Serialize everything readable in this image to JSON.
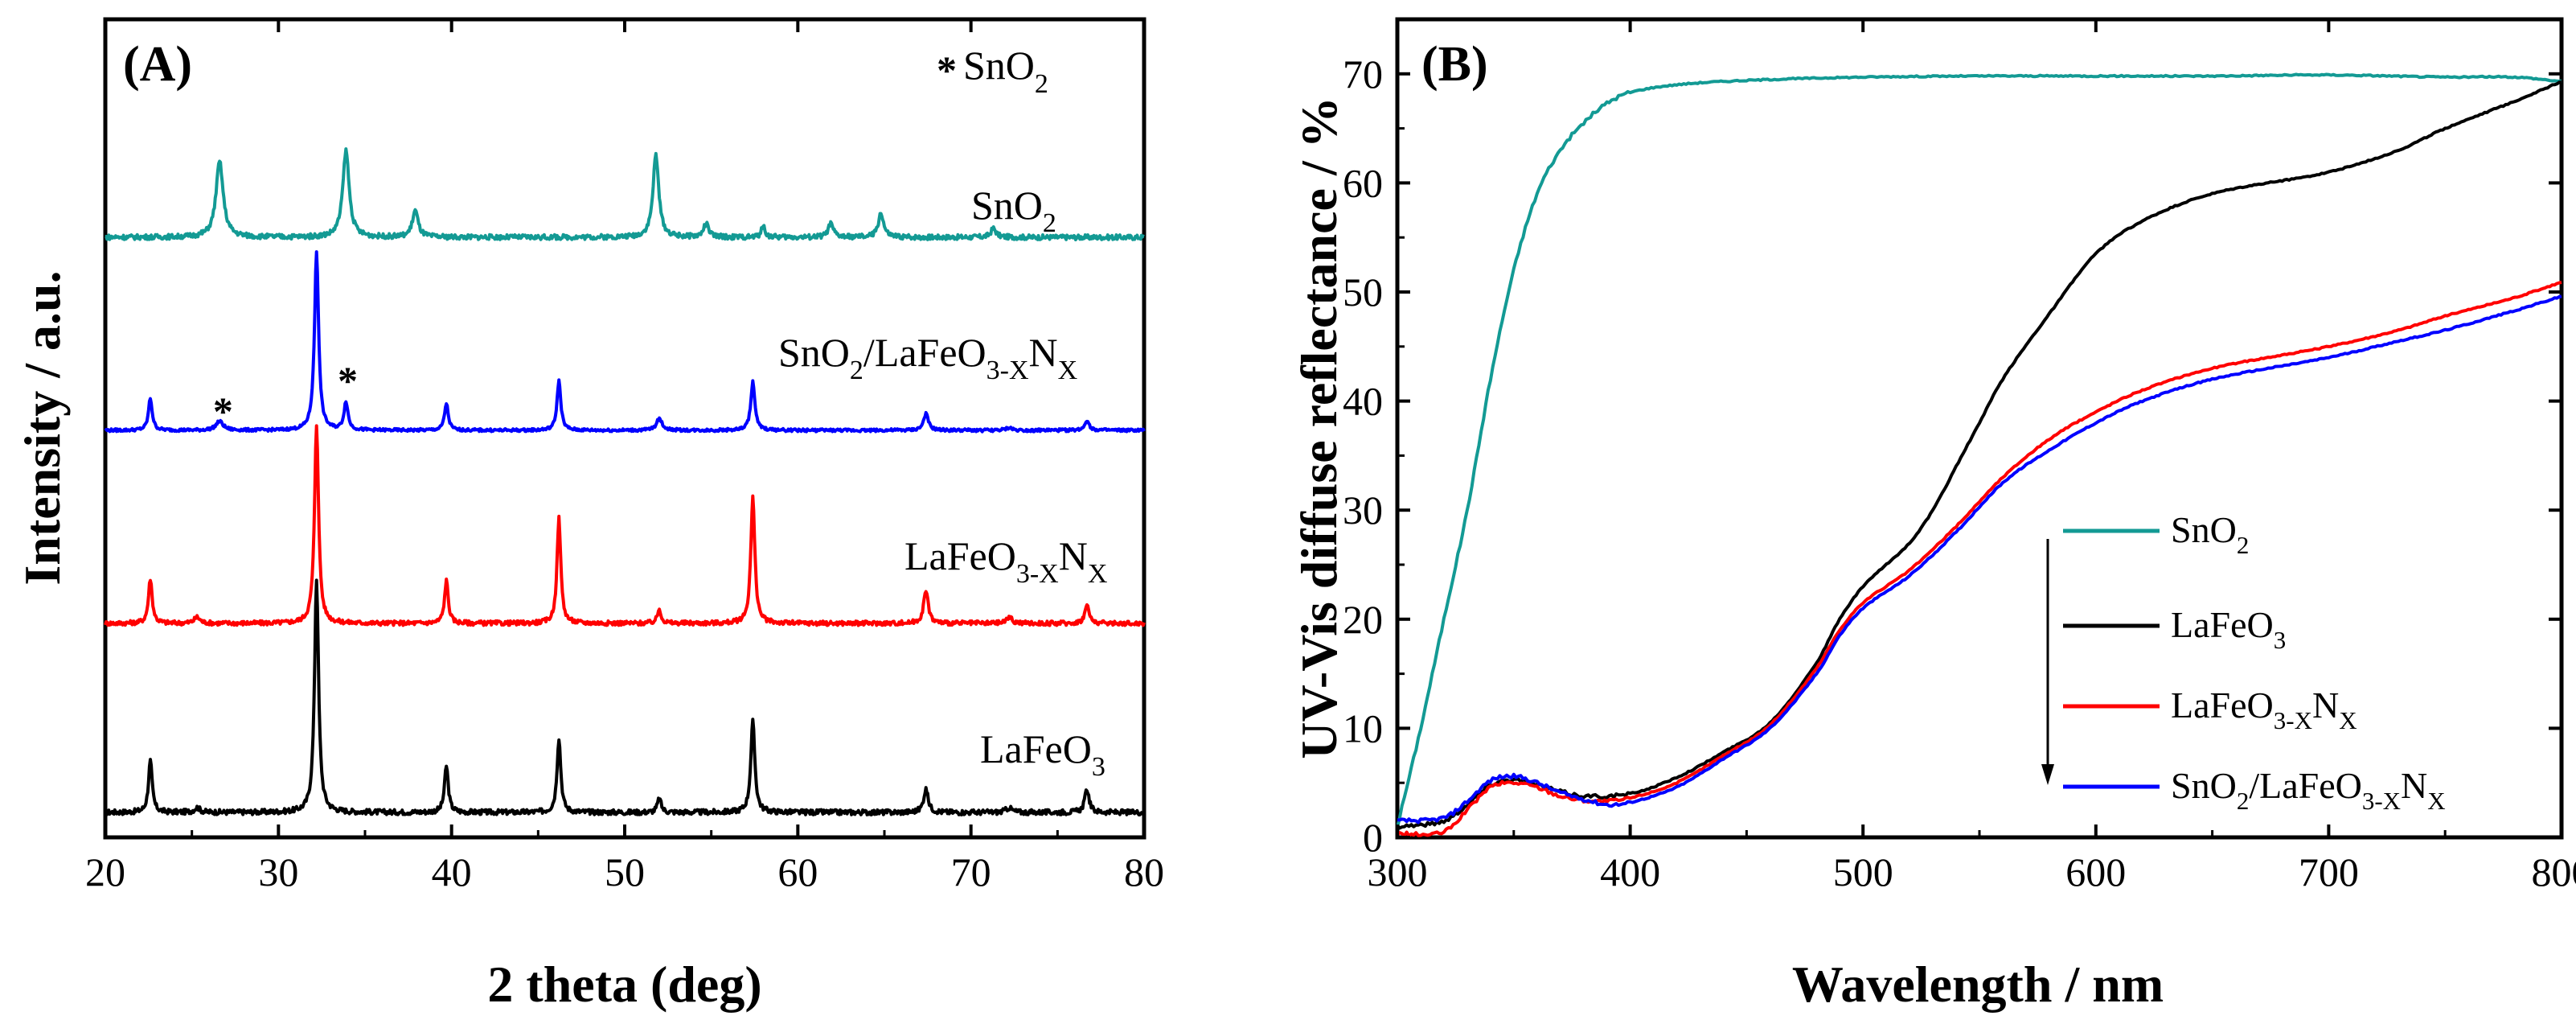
{
  "chart_data": [
    {
      "panel": "(A)",
      "type": "line",
      "xlabel": "2 theta (deg)",
      "ylabel": "Intensity / a.u.",
      "xlim": [
        20,
        80
      ],
      "xticks": [
        "20",
        "30",
        "40",
        "50",
        "60",
        "70",
        "80"
      ],
      "y_tick_labels": "none",
      "legend_note": {
        "symbol": "*",
        "base": "SnO",
        "sub": "2"
      },
      "series": [
        {
          "name": "LaFeO3",
          "label_base": "LaFeO",
          "label_sub": "3",
          "color": "#000000",
          "offset": 0,
          "peaks": [
            {
              "x": 22.6,
              "h": 0.22,
              "w": 0.13
            },
            {
              "x": 25.3,
              "h": 0.02,
              "w": 0.2
            },
            {
              "x": 32.2,
              "h": 1.0,
              "w": 0.14
            },
            {
              "x": 39.7,
              "h": 0.2,
              "w": 0.13
            },
            {
              "x": 46.2,
              "h": 0.32,
              "w": 0.13
            },
            {
              "x": 52.0,
              "h": 0.06,
              "w": 0.13
            },
            {
              "x": 57.4,
              "h": 0.39,
              "w": 0.14
            },
            {
              "x": 67.4,
              "h": 0.1,
              "w": 0.16
            },
            {
              "x": 72.2,
              "h": 0.02,
              "w": 0.2
            },
            {
              "x": 76.7,
              "h": 0.1,
              "w": 0.15
            }
          ]
        },
        {
          "name": "LaFeO3-XNX",
          "label_base": "LaFeO",
          "label_sub": "3-X",
          "label_base2": "N",
          "label_sub2": "X",
          "color": "#ff0000",
          "offset": 1,
          "peaks": [
            {
              "x": 22.6,
              "h": 0.22,
              "w": 0.13
            },
            {
              "x": 25.3,
              "h": 0.03,
              "w": 0.2
            },
            {
              "x": 32.2,
              "h": 0.98,
              "w": 0.14
            },
            {
              "x": 39.7,
              "h": 0.21,
              "w": 0.13
            },
            {
              "x": 46.2,
              "h": 0.52,
              "w": 0.13
            },
            {
              "x": 52.0,
              "h": 0.07,
              "w": 0.13
            },
            {
              "x": 57.4,
              "h": 0.62,
              "w": 0.14
            },
            {
              "x": 67.4,
              "h": 0.16,
              "w": 0.16
            },
            {
              "x": 72.2,
              "h": 0.03,
              "w": 0.2
            },
            {
              "x": 76.7,
              "h": 0.09,
              "w": 0.15
            }
          ]
        },
        {
          "name": "SnO2/LaFeO3-XNX",
          "label_base": "SnO",
          "label_sub": "2",
          "label_base2": "/LaFeO",
          "label_sub2": "3-X",
          "label_base3": "N",
          "label_sub3": "X",
          "color": "#0000ff",
          "offset": 2,
          "peaks": [
            {
              "x": 22.6,
              "h": 0.25,
              "w": 0.13
            },
            {
              "x": 26.6,
              "h": 0.07,
              "w": 0.25
            },
            {
              "x": 32.2,
              "h": 1.4,
              "w": 0.14
            },
            {
              "x": 33.9,
              "h": 0.22,
              "w": 0.14
            },
            {
              "x": 39.7,
              "h": 0.21,
              "w": 0.13
            },
            {
              "x": 46.2,
              "h": 0.39,
              "w": 0.13
            },
            {
              "x": 52.0,
              "h": 0.09,
              "w": 0.2
            },
            {
              "x": 57.4,
              "h": 0.38,
              "w": 0.14
            },
            {
              "x": 67.4,
              "h": 0.13,
              "w": 0.16
            },
            {
              "x": 72.2,
              "h": 0.02,
              "w": 0.2
            },
            {
              "x": 76.7,
              "h": 0.08,
              "w": 0.15
            }
          ],
          "star_marks": [
            26.8,
            34.0
          ]
        },
        {
          "name": "SnO2",
          "label_base": "SnO",
          "label_sub": "2",
          "color": "#139a94",
          "offset": 3,
          "peaks": [
            {
              "x": 26.6,
              "h": 0.34,
              "w": 0.25
            },
            {
              "x": 33.9,
              "h": 0.39,
              "w": 0.22
            },
            {
              "x": 37.9,
              "h": 0.12,
              "w": 0.2
            },
            {
              "x": 51.8,
              "h": 0.37,
              "w": 0.2
            },
            {
              "x": 54.7,
              "h": 0.06,
              "w": 0.18
            },
            {
              "x": 58.0,
              "h": 0.05,
              "w": 0.13
            },
            {
              "x": 61.9,
              "h": 0.06,
              "w": 0.18
            },
            {
              "x": 64.8,
              "h": 0.11,
              "w": 0.18
            },
            {
              "x": 71.3,
              "h": 0.04,
              "w": 0.18
            }
          ]
        }
      ]
    },
    {
      "panel": "(B)",
      "type": "line",
      "xlabel": "Wavelength / nm",
      "ylabel": "UV-Vis diffuse reflectance / %",
      "xlim": [
        300,
        800
      ],
      "ylim": [
        0,
        75
      ],
      "xticks": [
        "300",
        "400",
        "500",
        "600",
        "700",
        "800"
      ],
      "yticks": [
        "0",
        "10",
        "20",
        "30",
        "40",
        "50",
        "60",
        "70"
      ],
      "legend_arrow": "down",
      "series": [
        {
          "name": "SnO2",
          "label_base": "SnO",
          "label_sub": "2",
          "color": "#139a94",
          "x": [
            300,
            310,
            320,
            330,
            340,
            350,
            360,
            370,
            380,
            390,
            400,
            420,
            450,
            500,
            550,
            600,
            650,
            700,
            750,
            780,
            800
          ],
          "y": [
            1,
            10,
            20,
            30,
            42,
            52,
            59,
            63,
            65.5,
            67.3,
            68.3,
            69.0,
            69.4,
            69.7,
            69.8,
            69.8,
            69.8,
            69.9,
            69.7,
            69.7,
            69.3
          ]
        },
        {
          "name": "LaFeO3",
          "label_base": "LaFeO",
          "label_sub": "3",
          "color": "#000000",
          "x": [
            300,
            320,
            330,
            340,
            350,
            360,
            370,
            380,
            400,
            420,
            440,
            460,
            480,
            490,
            500,
            510,
            520,
            530,
            540,
            550,
            560,
            580,
            600,
            620,
            650,
            700,
            730,
            750,
            780,
            800
          ],
          "y": [
            1,
            1.5,
            3,
            4.8,
            5.3,
            4.8,
            4.2,
            3.8,
            4.0,
            5.5,
            7.8,
            10.5,
            16,
            20,
            23,
            25,
            27,
            30,
            34,
            38,
            42,
            48,
            53.5,
            56.5,
            59,
            61,
            63,
            65,
            67.5,
            69.3
          ]
        },
        {
          "name": "LaFeO3-XNX",
          "label_base": "LaFeO",
          "label_sub": "3-X",
          "label_base2": "N",
          "label_sub2": "X",
          "color": "#ff0000",
          "x": [
            300,
            320,
            330,
            340,
            350,
            360,
            370,
            380,
            390,
            400,
            420,
            440,
            460,
            480,
            490,
            500,
            520,
            540,
            560,
            580,
            600,
            620,
            650,
            700,
            730,
            750,
            780,
            800
          ],
          "y": [
            0.3,
            0.5,
            2.5,
            4.6,
            5.0,
            4.6,
            3.8,
            3.4,
            3.3,
            3.6,
            5.0,
            7.5,
            10.3,
            15.5,
            19,
            21.5,
            24.5,
            28.5,
            33,
            36.5,
            39,
            41,
            43,
            45,
            46.5,
            47.8,
            49.5,
            50.9
          ]
        },
        {
          "name": "SnO2/LaFeO3-XNX",
          "label_base": "SnO",
          "label_sub": "2",
          "label_base2": "/LaFeO",
          "label_sub2": "3-X",
          "label_base3": "N",
          "label_sub3": "X",
          "color": "#0000ff",
          "x": [
            300,
            320,
            330,
            340,
            350,
            360,
            370,
            380,
            390,
            400,
            420,
            440,
            460,
            480,
            490,
            500,
            520,
            540,
            560,
            580,
            600,
            620,
            650,
            700,
            730,
            750,
            780,
            800
          ],
          "y": [
            1.5,
            1.8,
            3.3,
            5.2,
            5.6,
            5.0,
            4.1,
            3.5,
            3.0,
            3.2,
            4.6,
            7.2,
            10.0,
            15.0,
            18.5,
            21.0,
            24.0,
            28.0,
            32.5,
            35.5,
            38,
            40,
            42,
            44,
            45.5,
            46.5,
            48.3,
            49.6
          ]
        }
      ]
    }
  ]
}
